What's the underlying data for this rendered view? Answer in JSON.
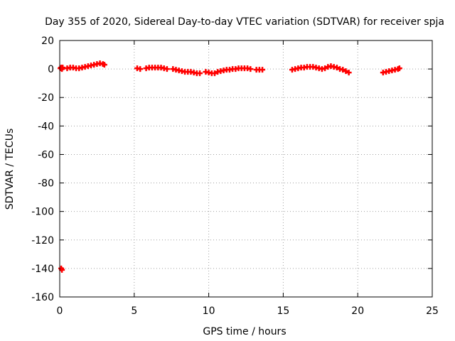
{
  "chart_data": {
    "type": "scatter",
    "title": "Day 355 of 2020, Sidereal Day-to-day VTEC variation (SDTVAR) for receiver spja",
    "xlabel": "GPS time / hours",
    "ylabel": "SDTVAR / TECUs",
    "xlim": [
      0,
      25
    ],
    "ylim": [
      -160,
      20
    ],
    "xticks": [
      "0",
      "5",
      "10",
      "15",
      "20",
      "25"
    ],
    "yticks": [
      "20",
      "0",
      "-20",
      "-40",
      "-60",
      "-80",
      "-100",
      "-120",
      "-140",
      "-160"
    ],
    "grid": true,
    "marker": "plus",
    "colors": {
      "series": "#ff0000",
      "grid": "#a0a0a0",
      "axis": "#000000"
    },
    "series": [
      {
        "values_x": [
          0.05,
          0.1,
          0.15,
          0.2,
          0.1,
          0.15,
          0.5,
          0.7,
          0.9,
          1.1,
          1.3,
          1.5,
          1.7,
          1.9,
          2.1,
          2.3,
          2.5,
          2.7,
          2.9,
          3.0,
          5.2,
          5.4,
          5.8,
          6.0,
          6.2,
          6.4,
          6.6,
          6.8,
          7.0,
          7.2,
          7.6,
          7.8,
          8.0,
          8.2,
          8.4,
          8.6,
          8.8,
          9.0,
          9.2,
          9.4,
          9.8,
          10.0,
          10.2,
          10.4,
          10.6,
          10.8,
          11.0,
          11.2,
          11.4,
          11.6,
          11.8,
          12.0,
          12.2,
          12.4,
          12.6,
          12.8,
          13.2,
          13.4,
          13.6,
          15.6,
          15.8,
          16.0,
          16.2,
          16.4,
          16.6,
          16.8,
          17.0,
          17.2,
          17.4,
          17.6,
          17.8,
          18.0,
          18.2,
          18.4,
          18.6,
          18.8,
          19.0,
          19.2,
          19.4,
          21.7,
          21.9,
          22.1,
          22.3,
          22.5,
          22.7,
          22.8
        ],
        "values_y": [
          0.5,
          1,
          0,
          1,
          -140,
          -141,
          0.5,
          1,
          1,
          0.5,
          0.5,
          1,
          1.5,
          2,
          2.5,
          3,
          3.5,
          4,
          3.5,
          3,
          0.5,
          0,
          0.5,
          1,
          1,
          1,
          1,
          1,
          0.5,
          0,
          0,
          -0.5,
          -1,
          -1.5,
          -2,
          -2,
          -2,
          -2.5,
          -3,
          -3,
          -2,
          -2.5,
          -3,
          -3,
          -2,
          -1.5,
          -1,
          -0.5,
          -0.5,
          0,
          0,
          0.5,
          0.5,
          0.5,
          0.5,
          0,
          -0.5,
          -0.5,
          -0.5,
          -0.5,
          0,
          0.5,
          1,
          1,
          1.5,
          1.5,
          1.5,
          1,
          0.5,
          0,
          0.5,
          1.5,
          2,
          1.5,
          1,
          0,
          -0.5,
          -1.5,
          -2.5,
          -2.5,
          -2,
          -1.5,
          -1,
          -0.5,
          0,
          0.5
        ]
      }
    ]
  }
}
